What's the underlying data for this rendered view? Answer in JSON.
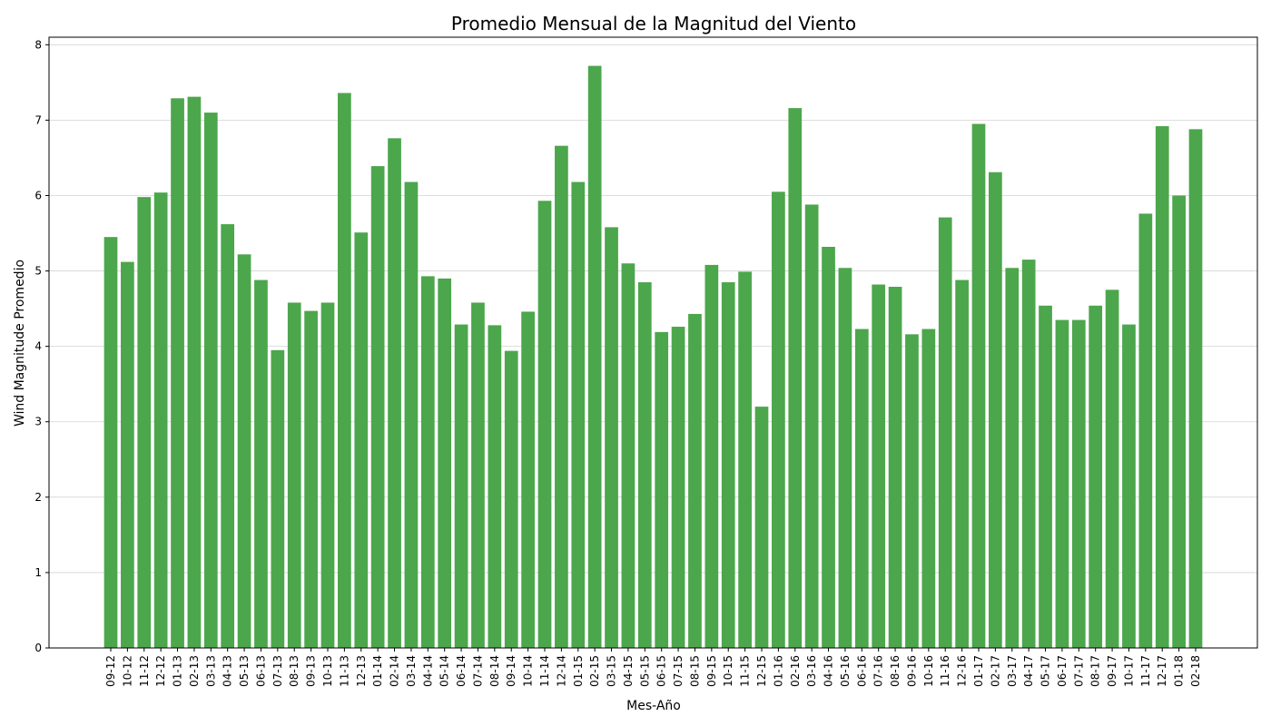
{
  "chart_data": {
    "type": "bar",
    "title": "Promedio Mensual de la Magnitud del Viento",
    "xlabel": "Mes-Año",
    "ylabel": "Wind Magnitude Promedio",
    "ylim": [
      0,
      8.1
    ],
    "yticks": [
      0,
      1,
      2,
      3,
      4,
      5,
      6,
      7,
      8
    ],
    "grid": "y",
    "bar_color": "#4ca64c",
    "categories": [
      "09-12",
      "10-12",
      "11-12",
      "12-12",
      "01-13",
      "02-13",
      "03-13",
      "04-13",
      "05-13",
      "06-13",
      "07-13",
      "08-13",
      "09-13",
      "10-13",
      "11-13",
      "12-13",
      "01-14",
      "02-14",
      "03-14",
      "04-14",
      "05-14",
      "06-14",
      "07-14",
      "08-14",
      "09-14",
      "10-14",
      "11-14",
      "12-14",
      "01-15",
      "02-15",
      "03-15",
      "04-15",
      "05-15",
      "06-15",
      "07-15",
      "08-15",
      "09-15",
      "10-15",
      "11-15",
      "12-15",
      "01-16",
      "02-16",
      "03-16",
      "04-16",
      "05-16",
      "06-16",
      "07-16",
      "08-16",
      "09-16",
      "10-16",
      "11-16",
      "12-16",
      "01-17",
      "02-17",
      "03-17",
      "04-17",
      "05-17",
      "06-17",
      "07-17",
      "08-17",
      "09-17",
      "10-17",
      "11-17",
      "12-17",
      "01-18",
      "02-18"
    ],
    "values": [
      5.45,
      5.12,
      5.98,
      6.04,
      7.29,
      7.31,
      7.1,
      5.62,
      5.22,
      4.88,
      3.95,
      4.58,
      4.47,
      4.58,
      7.36,
      5.51,
      6.39,
      6.76,
      6.18,
      4.93,
      4.9,
      4.29,
      4.58,
      4.28,
      3.94,
      4.46,
      5.93,
      6.66,
      6.18,
      7.72,
      5.58,
      5.1,
      4.85,
      4.19,
      4.26,
      4.43,
      5.08,
      4.85,
      4.99,
      3.2,
      6.05,
      7.16,
      5.88,
      5.32,
      5.04,
      4.23,
      4.82,
      4.79,
      4.16,
      4.23,
      5.71,
      4.88,
      6.95,
      6.31,
      5.04,
      5.15,
      4.54,
      4.35,
      4.35,
      4.54,
      4.75,
      4.29,
      5.76,
      6.92,
      6.0,
      6.88
    ]
  }
}
